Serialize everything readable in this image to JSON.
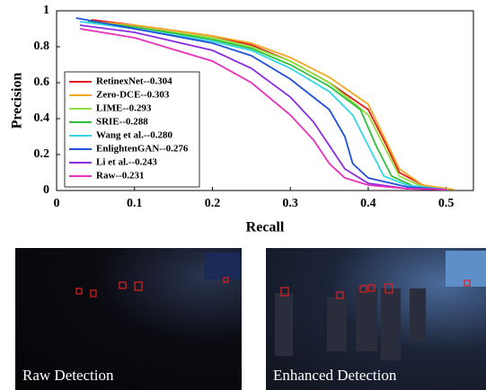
{
  "chart_data": {
    "type": "line",
    "xlabel": "Recall",
    "ylabel": "Precision",
    "xlim": [
      0,
      0.535
    ],
    "ylim": [
      0,
      1
    ],
    "xticks": [
      0,
      0.1,
      0.2,
      0.3,
      0.4,
      0.5
    ],
    "yticks": [
      0,
      0.2,
      0.4,
      0.6,
      0.8,
      1
    ],
    "legend": "lower left",
    "series": [
      {
        "name": "RetinexNet--0.304",
        "color": "#e41a1c",
        "x": [
          0.045,
          0.1,
          0.2,
          0.25,
          0.3,
          0.35,
          0.4,
          0.42,
          0.44,
          0.47,
          0.5
        ],
        "values": [
          0.95,
          0.92,
          0.86,
          0.81,
          0.72,
          0.6,
          0.45,
          0.28,
          0.1,
          0.03,
          0.005
        ]
      },
      {
        "name": "Zero-DCE--0.303",
        "color": "#f5a623",
        "x": [
          0.045,
          0.1,
          0.2,
          0.25,
          0.3,
          0.35,
          0.4,
          0.42,
          0.44,
          0.47,
          0.51
        ],
        "values": [
          0.94,
          0.92,
          0.86,
          0.82,
          0.74,
          0.63,
          0.48,
          0.3,
          0.12,
          0.03,
          0.005
        ]
      },
      {
        "name": "LIME--0.293",
        "color": "#8fe03a",
        "x": [
          0.04,
          0.1,
          0.2,
          0.25,
          0.3,
          0.35,
          0.4,
          0.42,
          0.44,
          0.47,
          0.5
        ],
        "values": [
          0.94,
          0.91,
          0.85,
          0.8,
          0.72,
          0.6,
          0.42,
          0.25,
          0.08,
          0.02,
          0.005
        ]
      },
      {
        "name": "SRIE--0.288",
        "color": "#2fbf3a",
        "x": [
          0.04,
          0.1,
          0.2,
          0.25,
          0.3,
          0.35,
          0.39,
          0.41,
          0.43,
          0.46,
          0.5
        ],
        "values": [
          0.94,
          0.91,
          0.84,
          0.79,
          0.7,
          0.58,
          0.45,
          0.25,
          0.08,
          0.02,
          0.005
        ]
      },
      {
        "name": "Wang et al.--0.280",
        "color": "#33d6e6",
        "x": [
          0.03,
          0.1,
          0.2,
          0.25,
          0.3,
          0.35,
          0.38,
          0.4,
          0.42,
          0.45,
          0.5
        ],
        "values": [
          0.94,
          0.9,
          0.83,
          0.78,
          0.68,
          0.55,
          0.42,
          0.25,
          0.08,
          0.03,
          0.005
        ]
      },
      {
        "name": "EnlightenGAN--0.276",
        "color": "#2050d8",
        "x": [
          0.025,
          0.1,
          0.2,
          0.25,
          0.3,
          0.35,
          0.37,
          0.38,
          0.4,
          0.45,
          0.5
        ],
        "values": [
          0.96,
          0.9,
          0.82,
          0.75,
          0.62,
          0.45,
          0.3,
          0.15,
          0.07,
          0.02,
          0.005
        ]
      },
      {
        "name": "Li et al.--0.243",
        "color": "#8a2be2",
        "x": [
          0.03,
          0.1,
          0.2,
          0.25,
          0.3,
          0.33,
          0.35,
          0.37,
          0.4,
          0.45,
          0.5
        ],
        "values": [
          0.92,
          0.88,
          0.78,
          0.68,
          0.52,
          0.38,
          0.25,
          0.12,
          0.04,
          0.01,
          0.005
        ]
      },
      {
        "name": "Raw--0.231",
        "color": "#e830b8",
        "x": [
          0.03,
          0.1,
          0.2,
          0.25,
          0.3,
          0.33,
          0.35,
          0.37,
          0.4,
          0.45,
          0.5
        ],
        "values": [
          0.9,
          0.85,
          0.72,
          0.6,
          0.42,
          0.28,
          0.15,
          0.07,
          0.03,
          0.01,
          0.005
        ]
      }
    ]
  },
  "images": [
    {
      "caption": "Raw Detection"
    },
    {
      "caption": "Enhanced Detection"
    }
  ]
}
